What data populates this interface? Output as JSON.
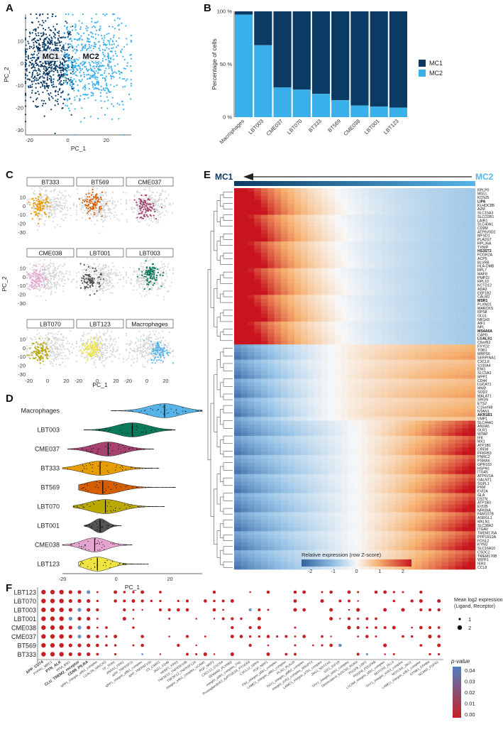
{
  "colors": {
    "mc1": "#0b3a64",
    "mc2": "#3ab0ea",
    "grey": "#d4d4d4"
  },
  "panels": {
    "A": {
      "letter": "A",
      "label_mc1": "MC1",
      "label_mc2": "MC2",
      "xlabel": "PC_1",
      "ylabel": "PC_2",
      "xticks": [
        "-20",
        "0",
        "20"
      ],
      "yticks": [
        "10",
        "0",
        "-10",
        "-20",
        "-30"
      ]
    },
    "B": {
      "letter": "B",
      "ylabel": "Percentage of cells",
      "yticks": [
        "100 %",
        "50 %",
        "0 %"
      ],
      "legend": [
        {
          "label": "MC1",
          "color": "#0b3a64"
        },
        {
          "label": "MC2",
          "color": "#3ab0ea"
        }
      ]
    },
    "C": {
      "letter": "C",
      "xlabel": "PC_1",
      "ylabel": "PC_2",
      "xticks": [
        "-20",
        "0",
        "20"
      ],
      "yticks": [
        "10",
        "0",
        "-10",
        "-20",
        "-30"
      ]
    },
    "D": {
      "letter": "D",
      "xlabel": "PC_1",
      "xticks": [
        "-20",
        "0",
        "20"
      ]
    },
    "E": {
      "letter": "E",
      "label_mc1": "MC1",
      "label_mc2": "MC2",
      "colorbar_title": "Relative expression (row Z-score)",
      "colorbar_ticks": [
        "-2",
        "-1",
        "0",
        "1",
        "2"
      ]
    },
    "F": {
      "letter": "F",
      "size_legend_title": "Mean log2 expression\n(Ligand, Receptor)",
      "size_legend_labels": [
        "1",
        "2"
      ],
      "pvalue_title": "p-value",
      "pvalue_ticks": [
        "0.04",
        "0.03",
        "0.02",
        "0.01",
        "0.00"
      ]
    }
  },
  "chart_data": [
    {
      "id": "A",
      "type": "scatter",
      "title": "",
      "xlabel": "PC_1",
      "ylabel": "PC_2",
      "xlim": [
        -22,
        33
      ],
      "ylim": [
        -32,
        22
      ],
      "series": [
        {
          "name": "MC1",
          "center": [
            -10,
            0
          ],
          "spread": [
            7,
            9
          ]
        },
        {
          "name": "MC2",
          "center": [
            12,
            0
          ],
          "spread": [
            10,
            10
          ]
        }
      ]
    },
    {
      "id": "B",
      "type": "bar",
      "stacked": true,
      "ylabel": "Percentage of cells",
      "ylim": [
        0,
        100
      ],
      "categories": [
        "Macrophages",
        "LBT003",
        "CME037",
        "LBT070",
        "BT333",
        "BT569",
        "CME038",
        "LBT001",
        "LBT123"
      ],
      "series": [
        {
          "name": "MC2",
          "values": [
            97,
            68,
            28,
            26,
            22,
            16,
            11,
            10,
            9
          ]
        },
        {
          "name": "MC1",
          "values": [
            3,
            32,
            72,
            74,
            78,
            84,
            89,
            90,
            91
          ]
        }
      ]
    },
    {
      "id": "C",
      "type": "scatter",
      "facets": [
        {
          "name": "BT333",
          "color": "#e69d00",
          "cx": -8,
          "cy": 0
        },
        {
          "name": "BT569",
          "color": "#d55e00",
          "cx": -4,
          "cy": 3
        },
        {
          "name": "CME037",
          "color": "#a6426f",
          "cx": -2,
          "cy": -2
        },
        {
          "name": "CME038",
          "color": "#e5a4cf",
          "cx": -12,
          "cy": -2
        },
        {
          "name": "LBT001",
          "color": "#555555",
          "cx": -6,
          "cy": -4
        },
        {
          "name": "LBT003",
          "color": "#0b7a5a",
          "cx": 4,
          "cy": 3
        },
        {
          "name": "LBT070",
          "color": "#b8a800",
          "cx": -8,
          "cy": -4
        },
        {
          "name": "LBT123",
          "color": "#f0e442",
          "cx": -6,
          "cy": -2
        },
        {
          "name": "Macrophages",
          "color": "#56b4e9",
          "cx": 14,
          "cy": -4
        }
      ]
    },
    {
      "id": "D",
      "type": "violin",
      "xlabel": "PC_1",
      "xlim": [
        -20,
        32
      ],
      "categories": [
        "Macrophages",
        "LBT003",
        "CME037",
        "BT333",
        "BT569",
        "LBT070",
        "LBT001",
        "CME038",
        "LBT123"
      ],
      "colors": [
        "#56b4e9",
        "#0b7a5a",
        "#a6426f",
        "#e69d00",
        "#d55e00",
        "#b8a800",
        "#555555",
        "#e5a4cf",
        "#f0e442"
      ],
      "medians": [
        18,
        6,
        -3,
        -6,
        -5,
        -4,
        -6,
        -8,
        -7
      ],
      "ranges": [
        [
          -2,
          32
        ],
        [
          -12,
          22
        ],
        [
          -18,
          14
        ],
        [
          -20,
          16
        ],
        [
          -14,
          22
        ],
        [
          -16,
          18
        ],
        [
          -12,
          2
        ],
        [
          -20,
          6
        ],
        [
          -14,
          12
        ]
      ]
    },
    {
      "id": "E",
      "type": "heatmap",
      "colorbar_range": [
        -2.5,
        2.5
      ],
      "genes": [
        "RPLP0",
        "MGLL",
        "KCNJ5",
        "LIPA",
        "KLHDC8B",
        "A2M",
        "SLC15A3",
        "SLCO2B1",
        "LAIR1",
        "SLC40A1",
        "CD9M",
        "ATP6V0D2",
        "MFSD1",
        "PLA2G7",
        "RPL36A",
        "TXNIP",
        "HS3ST2",
        "FCGR2A",
        "ACP5",
        "BLVRB",
        "HLA-DMB",
        "RPL7",
        "MAF8",
        "PMP22",
        "RPL10",
        "KCTD12",
        "ADA3",
        "EEF1B2",
        "CALM2",
        "MSR1",
        "PLXND1",
        "MARCKS",
        "RPS8",
        "GLUL",
        "NR1H3",
        "AIF1",
        "NPL",
        "MS4A6A",
        "CAPG",
        "LGALS1",
        "C6orf62",
        "FXYD2",
        "TOB1",
        "MRPS6",
        "SERPINA1",
        "CXCL8",
        "S100A4",
        "ENG",
        "SLC5A3",
        "MPP1",
        "CD44",
        "LUCAT1",
        "MMD",
        "SOD2",
        "MALAT1",
        "SRGN",
        "ETS2",
        "C15orf48",
        "NTAN1",
        "AKR1B1",
        "VMP1",
        "SLC44A1",
        "ANXA5",
        "OLR1",
        "WTAP",
        "IF8",
        "MX1",
        "ATP1B1",
        "CREM",
        "PFKFB3",
        "PNRC2",
        "PSMA6",
        "GPR183",
        "HSPH1",
        "ITGA5",
        "ATP6V1A",
        "GALNT1",
        "SGPL1",
        "PKM",
        "EVI2A",
        "GLA",
        "DSTN",
        "ATP1B3",
        "EVI2B",
        "NFKBIA",
        "FAM107B",
        "ASRGL1",
        "MKLN1",
        "SLC38A2",
        "ITGAV",
        "TMEM176A",
        "PPP1R12A",
        "FOSL2",
        "KYNU",
        "SLC16A10",
        "CSDC2",
        "TMEM176B",
        "WIPF1",
        "IER3",
        "CCL8"
      ],
      "bold_genes": [
        "LIPA",
        "HS3ST2",
        "MSR1",
        "MS4A6A",
        "LGALS1",
        "AKR1B1"
      ]
    },
    {
      "id": "F",
      "type": "scatter",
      "subtype": "dotplot",
      "rows": [
        "LBT123",
        "LBT070",
        "LBT003",
        "LBT001",
        "CME038",
        "CME037",
        "BT569",
        "BT333"
      ],
      "columns": [
        "APP_CD74",
        "PTPRC_MRC1",
        "PTN_ALK",
        "PPIA_BSG",
        "CLU_TREM2_receptor",
        "CD99_PILRA",
        "SPP1_integrin_a4b1_complex",
        "LGALS9_HAVCR2",
        "TF_TFRC",
        "ANXA1_FPR1",
        "APP_TNFRSF21",
        "SPP1_integrin_a9b1_complex",
        "APP_TNFRSF21b",
        "C3_C3AR1",
        "JAG1_CD46",
        "HEBP1_FPR2",
        "TNFSF10_TNFRSF10B",
        "TNFSF12_TNFRSF12A",
        "integrin_a4b1_complex_VCAM1",
        "PGF_NRP2",
        "CXCL12_CXCR4",
        "SEMA4D_PLXNB2",
        "integrin_a4b1_complex_FN1",
        "ProstaglandinE2_byPTGES3_PTGER4",
        "CXCL12_DPP4",
        "PGF_NRP1",
        "FN1_integrin_a5b1_complex",
        "LAMC1_integrin_a6b1_complex",
        "PLAU_PLAUR",
        "THY1_integrin_aMb2_complex",
        "integrin_aVb1_complex_ANGPT2",
        "LAMC1_integrin_a7b1_complex",
        "JAG1_NOTCH1",
        "IGF1_IGF1R",
        "THY1_integrin_aXb2_complex",
        "Desmosterol_bySC5D_RORA",
        "PDGFB_LRP1",
        "PDGFB_PDGFRB",
        "L1CAM_integrin_a5b1_complex",
        "NOTCH1_DLL4",
        "THY1_integrin_aVb3_complex",
        "NOTCH1_JAG1",
        "LAMC1_integrin_a3b1_complex",
        "EFNB1_EPHB4",
        "NCAM1_FGFR1"
      ],
      "bold_columns": [
        "APP_CD74",
        "PTN_ALK",
        "CLU_TREM2_receptor",
        "CD99_PILRA"
      ],
      "size_legend": [
        1,
        2
      ],
      "pvalue_range": [
        0.0,
        0.045
      ]
    }
  ]
}
